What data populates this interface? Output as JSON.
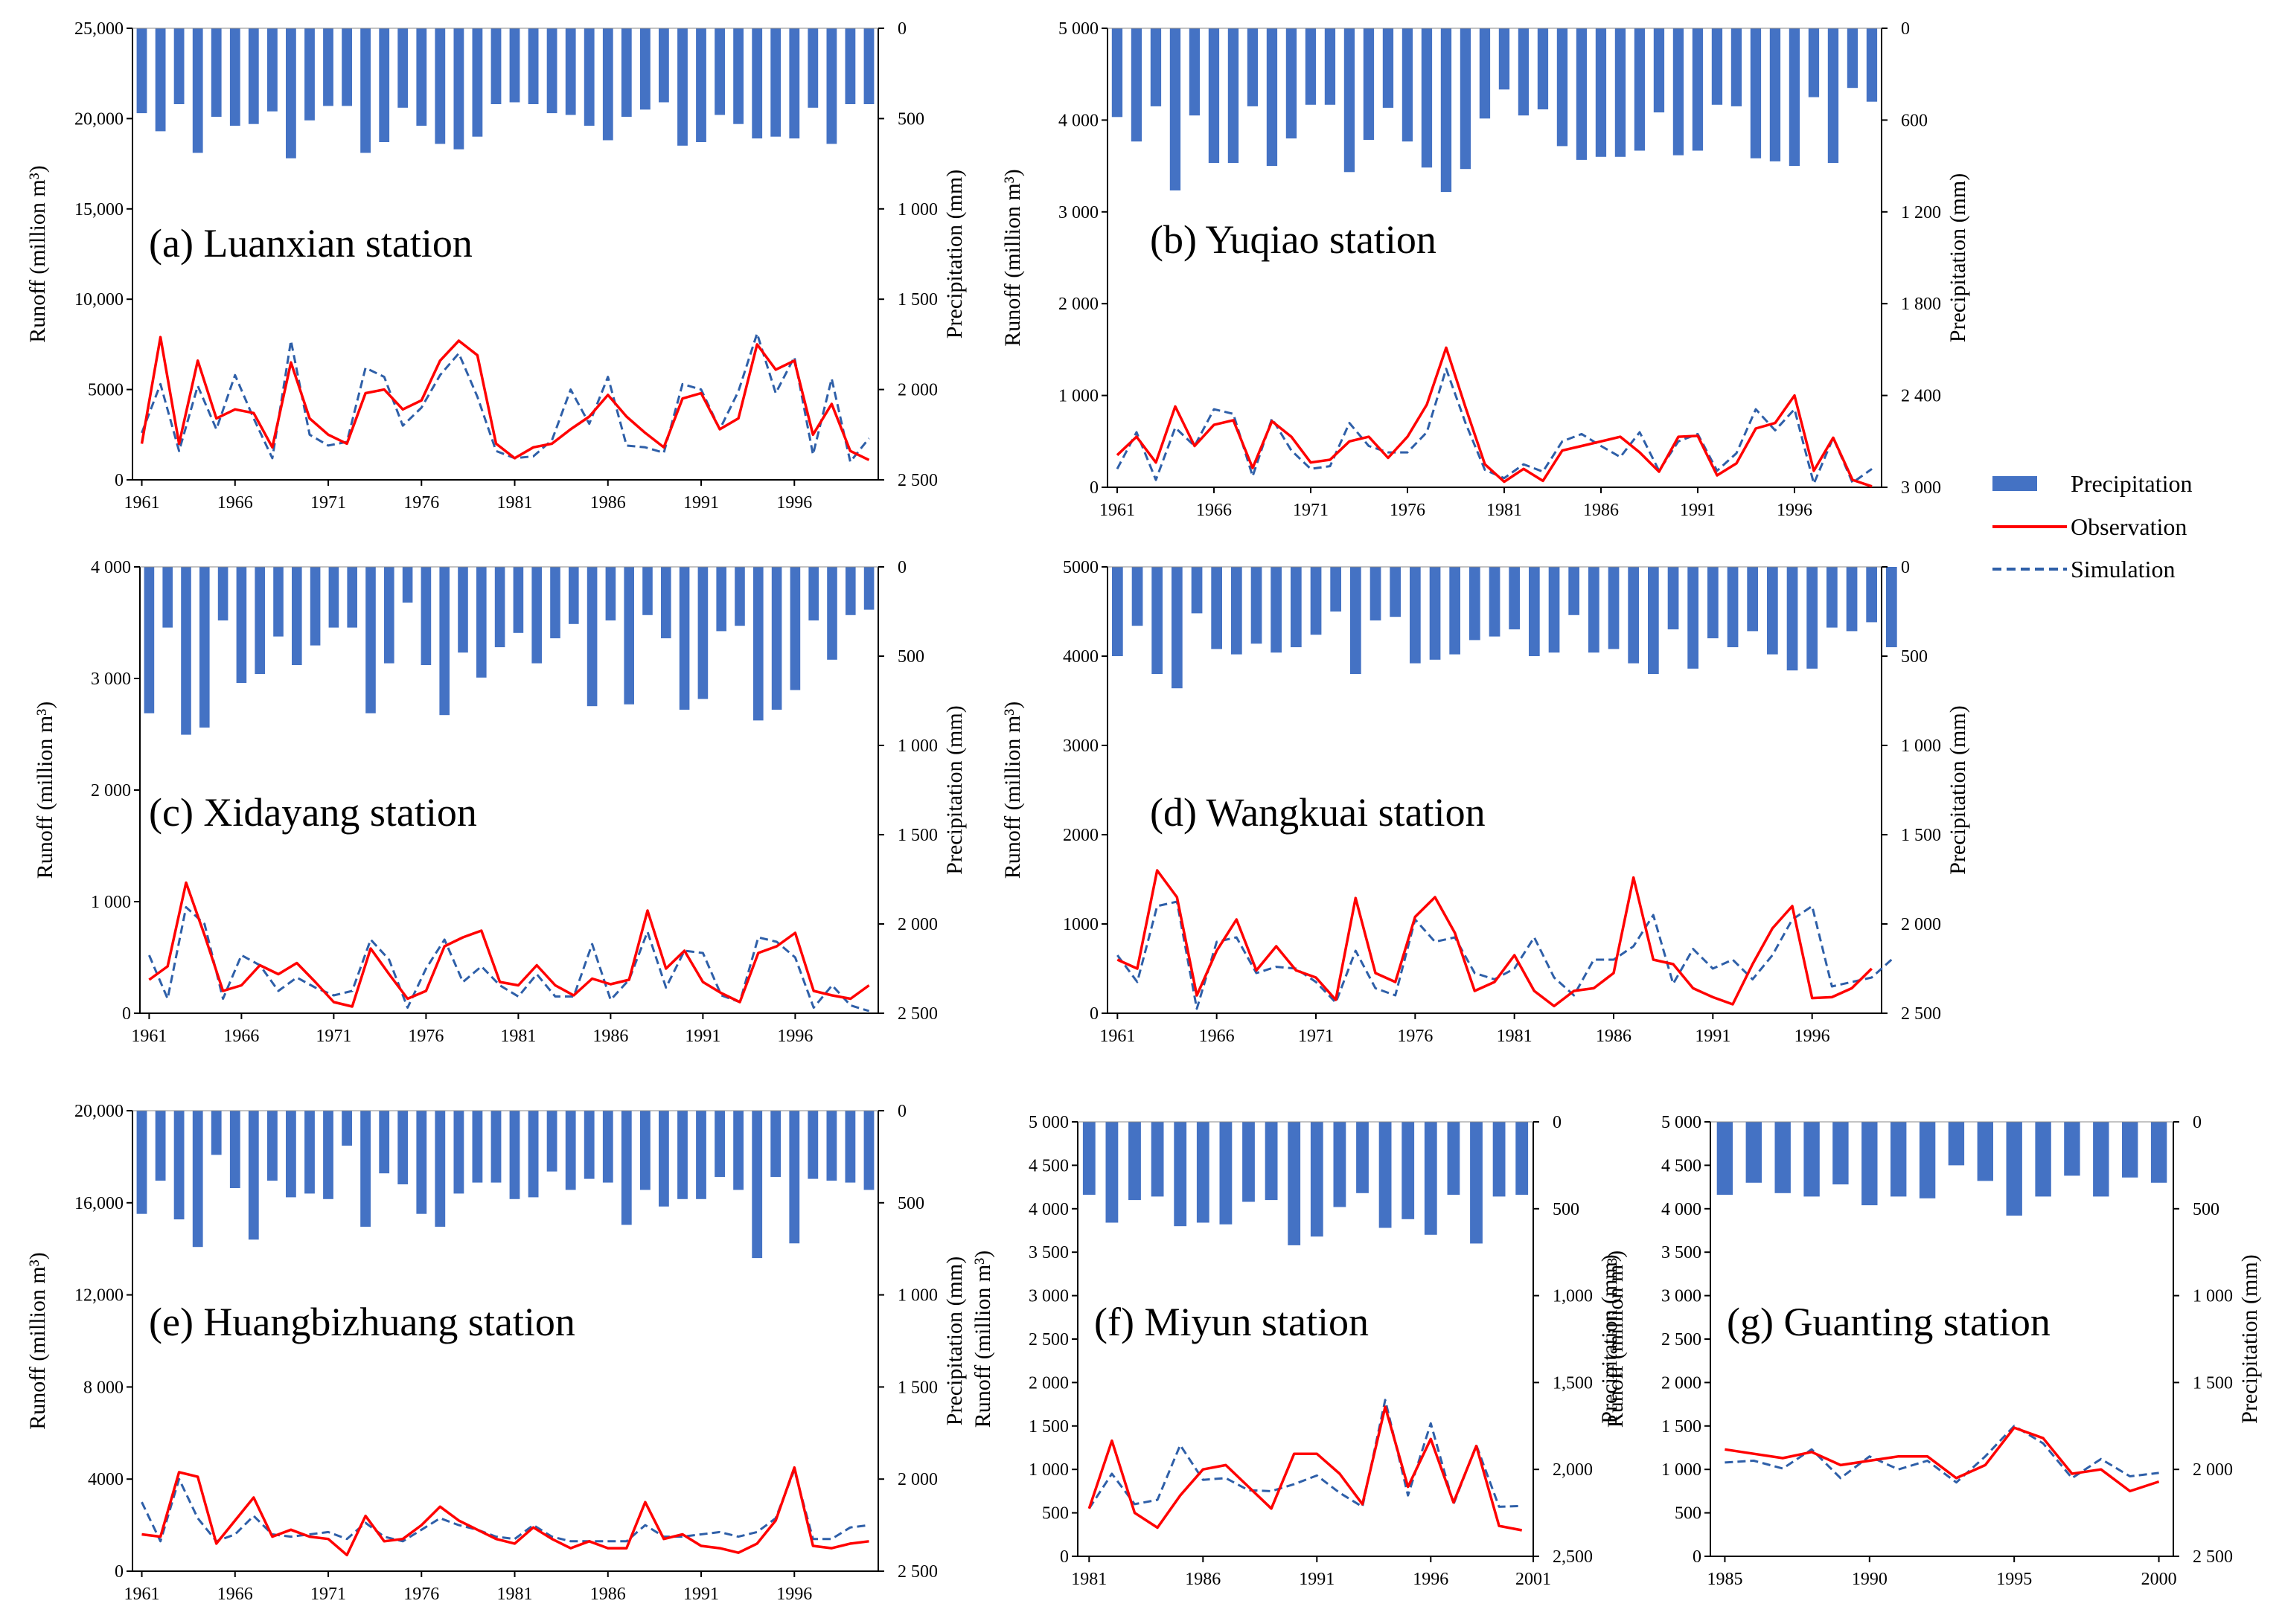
{
  "colors": {
    "precipitation": "#4472C4",
    "observation": "#FF0000",
    "simulation": "#2E5FA8"
  },
  "legend": {
    "precipitation": "Precipitation",
    "observation": "Observation",
    "simulation": "Simulation",
    "placement": "right"
  },
  "chart_data": [
    {
      "type": "bar+line",
      "id": "a",
      "title": "(a)  Luanxian station",
      "ylabel": "Runoff (million m³)",
      "y2label": "Precipitation (mm)",
      "ylim": [
        0,
        25000
      ],
      "yticks": [
        "0",
        "5000",
        "10,000",
        "15,000",
        "20,000",
        "25,000"
      ],
      "y2lim": [
        0,
        2500
      ],
      "y2reversed": true,
      "y2ticks": [
        "0",
        "500",
        "1 000",
        "1 500",
        "2 000",
        "2 500"
      ],
      "xstart": 1961,
      "xticks": [
        "1961",
        "1966",
        "1971",
        "1976",
        "1981",
        "1986",
        "1991",
        "1996"
      ],
      "grid": false,
      "precipitation": [
        470,
        570,
        420,
        690,
        490,
        540,
        530,
        460,
        720,
        510,
        430,
        430,
        690,
        630,
        440,
        540,
        640,
        670,
        600,
        420,
        410,
        420,
        470,
        480,
        540,
        620,
        490,
        450,
        410,
        650,
        630,
        480,
        530,
        610,
        600,
        610,
        440,
        640,
        420,
        420
      ],
      "observation": [
        2000,
        7900,
        2000,
        6600,
        3400,
        3900,
        3700,
        1800,
        6500,
        3400,
        2500,
        2000,
        4800,
        5000,
        3900,
        4400,
        6600,
        7700,
        6900,
        2000,
        1200,
        1800,
        2000,
        2800,
        3500,
        4700,
        3500,
        2600,
        1800,
        4500,
        4800,
        2800,
        3400,
        7500,
        6100,
        6600,
        2500,
        4200,
        1600,
        1100
      ],
      "simulation": [
        2600,
        5300,
        1600,
        5200,
        2800,
        5800,
        3400,
        1200,
        7700,
        2500,
        1900,
        2100,
        6200,
        5700,
        3000,
        4000,
        5800,
        7000,
        4600,
        1600,
        1200,
        1300,
        2200,
        5000,
        3100,
        5700,
        1900,
        1800,
        1500,
        5300,
        5000,
        2800,
        4900,
        8100,
        4800,
        6800,
        1400,
        5600,
        1000,
        2300
      ]
    },
    {
      "type": "bar+line",
      "id": "b",
      "title": "(b)  Yuqiao station",
      "ylabel": "Runoff (million m³)",
      "y2label": "Precipitation (mm)",
      "ylim": [
        0,
        5000
      ],
      "yticks": [
        "0",
        "1 000",
        "2 000",
        "3 000",
        "4 000",
        "5 000"
      ],
      "y2lim": [
        0,
        3000
      ],
      "y2reversed": true,
      "y2ticks": [
        "0",
        "600",
        "1 200",
        "1 800",
        "2 400",
        "3 000"
      ],
      "xstart": 1961,
      "xticks": [
        "1961",
        "1966",
        "1971",
        "1976",
        "1981",
        "1986",
        "1991",
        "1996"
      ],
      "grid": false,
      "precipitation": [
        580,
        740,
        510,
        1060,
        570,
        880,
        880,
        510,
        900,
        720,
        500,
        500,
        940,
        730,
        520,
        740,
        910,
        1070,
        920,
        590,
        400,
        570,
        530,
        770,
        860,
        840,
        840,
        800,
        550,
        830,
        800,
        500,
        510,
        850,
        870,
        900,
        450,
        880,
        390,
        480
      ],
      "observation": [
        350,
        550,
        270,
        880,
        450,
        680,
        730,
        210,
        720,
        550,
        270,
        300,
        500,
        550,
        320,
        550,
        900,
        1520,
        870,
        250,
        60,
        200,
        70,
        400,
        450,
        500,
        550,
        380,
        170,
        550,
        560,
        130,
        260,
        640,
        700,
        1000,
        180,
        540,
        80,
        10
      ],
      "simulation": [
        200,
        600,
        80,
        650,
        450,
        850,
        800,
        120,
        750,
        400,
        200,
        230,
        700,
        450,
        380,
        380,
        600,
        1290,
        700,
        190,
        100,
        250,
        170,
        500,
        580,
        450,
        330,
        600,
        180,
        500,
        580,
        180,
        370,
        850,
        620,
        850,
        40,
        540,
        50,
        200
      ]
    },
    {
      "type": "bar+line",
      "id": "c",
      "title": "(c)  Xidayang station",
      "ylabel": "Runoff (million m³)",
      "y2label": "Precipitation (mm)",
      "ylim": [
        0,
        4000
      ],
      "yticks": [
        "0",
        "1 000",
        "2 000",
        "3 000",
        "4 000"
      ],
      "y2lim": [
        0,
        2500
      ],
      "y2reversed": true,
      "y2ticks": [
        "0",
        "500",
        "1 000",
        "1 500",
        "2 000",
        "2 500"
      ],
      "xstart": 1961,
      "xticks": [
        "1961",
        "1966",
        "1971",
        "1976",
        "1981",
        "1986",
        "1991",
        "1996"
      ],
      "grid": false,
      "precipitation": [
        820,
        340,
        940,
        900,
        300,
        650,
        600,
        390,
        550,
        440,
        340,
        340,
        820,
        540,
        200,
        550,
        830,
        480,
        620,
        450,
        370,
        540,
        400,
        320,
        780,
        300,
        770,
        270,
        400,
        800,
        740,
        360,
        330,
        860,
        800,
        690,
        300,
        520,
        270,
        240
      ],
      "observation": [
        300,
        420,
        1170,
        700,
        200,
        250,
        430,
        350,
        450,
        280,
        100,
        60,
        580,
        350,
        130,
        200,
        600,
        680,
        740,
        280,
        250,
        430,
        250,
        160,
        310,
        260,
        300,
        920,
        400,
        560,
        280,
        180,
        100,
        540,
        600,
        720,
        200,
        160,
        130,
        250
      ],
      "simulation": [
        520,
        130,
        950,
        800,
        130,
        520,
        430,
        200,
        320,
        230,
        160,
        200,
        660,
        480,
        50,
        400,
        660,
        280,
        420,
        250,
        150,
        350,
        150,
        150,
        620,
        120,
        300,
        730,
        230,
        560,
        540,
        160,
        100,
        680,
        640,
        500,
        50,
        250,
        70,
        20
      ]
    },
    {
      "type": "bar+line",
      "id": "d",
      "title": "(d)  Wangkuai station",
      "ylabel": "Runoff (million m³)",
      "y2label": "Precipitation (mm)",
      "ylim": [
        0,
        5000
      ],
      "yticks": [
        "0",
        "1000",
        "2000",
        "3000",
        "4000",
        "5000"
      ],
      "y2lim": [
        0,
        2500
      ],
      "y2reversed": true,
      "y2ticks": [
        "0",
        "500",
        "1 000",
        "1 500",
        "2 000",
        "2 500"
      ],
      "xstart": 1961,
      "xticks": [
        "1961",
        "1966",
        "1971",
        "1976",
        "1981",
        "1986",
        "1991",
        "1996"
      ],
      "grid": false,
      "precipitation": [
        500,
        330,
        600,
        680,
        260,
        460,
        490,
        430,
        480,
        450,
        380,
        250,
        600,
        300,
        280,
        540,
        520,
        490,
        410,
        390,
        350,
        500,
        480,
        270,
        480,
        460,
        540,
        600,
        350,
        570,
        400,
        450,
        360,
        490,
        580,
        570,
        340,
        360,
        310,
        450
      ],
      "observation": [
        600,
        500,
        1600,
        1300,
        200,
        700,
        1050,
        480,
        750,
        480,
        400,
        150,
        1290,
        450,
        350,
        1080,
        1300,
        900,
        250,
        350,
        650,
        250,
        80,
        250,
        280,
        450,
        1520,
        600,
        550,
        280,
        180,
        100,
        550,
        950,
        1200,
        170,
        180,
        280,
        500
      ],
      "simulation": [
        650,
        350,
        1200,
        1250,
        50,
        800,
        850,
        450,
        520,
        500,
        350,
        120,
        700,
        280,
        200,
        1050,
        800,
        850,
        450,
        380,
        500,
        850,
        400,
        200,
        600,
        600,
        750,
        1100,
        330,
        720,
        500,
        600,
        380,
        650,
        1050,
        1200,
        300,
        350,
        400,
        600
      ]
    },
    {
      "type": "bar+line",
      "id": "e",
      "title": "(e)  Huangbizhuang station",
      "ylabel": "Runoff (million m³)",
      "y2label": "Precipitation (mm)",
      "ylim": [
        0,
        20000
      ],
      "yticks": [
        "0",
        "4000",
        "8 000",
        "12,000",
        "16,000",
        "20,000"
      ],
      "y2lim": [
        0,
        2500
      ],
      "y2reversed": true,
      "y2ticks": [
        "0",
        "500",
        "1 000",
        "1 500",
        "2 000",
        "2 500"
      ],
      "xstart": 1961,
      "xticks": [
        "1961",
        "1966",
        "1971",
        "1976",
        "1981",
        "1986",
        "1991",
        "1996"
      ],
      "grid": false,
      "precipitation": [
        560,
        380,
        590,
        740,
        240,
        420,
        700,
        380,
        470,
        450,
        480,
        190,
        630,
        340,
        400,
        560,
        630,
        450,
        390,
        390,
        480,
        470,
        330,
        430,
        370,
        390,
        620,
        430,
        520,
        480,
        480,
        360,
        430,
        800,
        360,
        720,
        370,
        380,
        390,
        430
      ],
      "observation": [
        1600,
        1500,
        4300,
        4100,
        1200,
        2200,
        3200,
        1500,
        1800,
        1500,
        1400,
        700,
        2400,
        1300,
        1400,
        2000,
        2800,
        2200,
        1800,
        1400,
        1200,
        1900,
        1400,
        1000,
        1300,
        1000,
        1000,
        3000,
        1400,
        1600,
        1100,
        1000,
        800,
        1200,
        2200,
        4500,
        1100,
        1000,
        1200,
        1300
      ],
      "simulation": [
        3000,
        1300,
        4000,
        2300,
        1300,
        1600,
        2400,
        1600,
        1500,
        1600,
        1700,
        1400,
        2100,
        1500,
        1300,
        1800,
        2300,
        2000,
        1800,
        1500,
        1400,
        2000,
        1500,
        1300,
        1300,
        1300,
        1300,
        2000,
        1500,
        1500,
        1600,
        1700,
        1500,
        1700,
        2300,
        4400,
        1400,
        1400,
        1900,
        2000
      ]
    },
    {
      "type": "bar+line",
      "id": "f",
      "title": "(f)  Miyun station",
      "ylabel": "Runoff (million m³)",
      "y2label": "Precipitation (mm)",
      "ylim": [
        0,
        5000
      ],
      "yticks": [
        "0",
        "500",
        "1 000",
        "1 500",
        "2 000",
        "2 500",
        "3 000",
        "3 500",
        "4 000",
        "4 500",
        "5 000"
      ],
      "y2lim": [
        0,
        2500
      ],
      "y2reversed": true,
      "y2ticks": [
        "0",
        "500",
        "1,000",
        "1,500",
        "2,000",
        "2,500"
      ],
      "xstart": 1981,
      "xticks": [
        "1981",
        "1986",
        "1991",
        "1996",
        "2001"
      ],
      "grid": false,
      "precipitation": [
        420,
        580,
        450,
        430,
        600,
        580,
        590,
        460,
        450,
        710,
        660,
        490,
        410,
        610,
        560,
        650,
        420,
        700,
        430,
        420
      ],
      "observation": [
        550,
        1330,
        500,
        330,
        700,
        1000,
        1050,
        800,
        550,
        1180,
        1180,
        950,
        600,
        1720,
        800,
        1350,
        620,
        1270,
        350,
        300
      ],
      "simulation": [
        550,
        950,
        600,
        650,
        1280,
        880,
        900,
        760,
        750,
        830,
        930,
        730,
        570,
        1800,
        700,
        1530,
        600,
        1280,
        570,
        580
      ]
    },
    {
      "type": "bar+line",
      "id": "g",
      "title": "(g)  Guanting station",
      "ylabel": "Runoff (million m³)",
      "y2label": "Precipitation (mm)",
      "ylim": [
        0,
        5000
      ],
      "yticks": [
        "0",
        "500",
        "1 000",
        "1 500",
        "2 000",
        "2 500",
        "3 000",
        "3 500",
        "4 000",
        "4 500",
        "5 000"
      ],
      "y2lim": [
        0,
        2500
      ],
      "y2reversed": true,
      "y2ticks": [
        "0",
        "500",
        "1 000",
        "1 500",
        "2 000",
        "2 500"
      ],
      "xstart": 1985,
      "xticks": [
        "1985",
        "1990",
        "1995",
        "2000"
      ],
      "grid": false,
      "precipitation": [
        420,
        350,
        410,
        430,
        360,
        480,
        430,
        440,
        250,
        340,
        540,
        430,
        310,
        430,
        320,
        350
      ],
      "observation": [
        1230,
        1180,
        1130,
        1200,
        1050,
        1100,
        1150,
        1150,
        900,
        1050,
        1480,
        1360,
        950,
        1000,
        750,
        860
      ],
      "simulation": [
        1080,
        1100,
        1010,
        1230,
        900,
        1150,
        1000,
        1100,
        850,
        1150,
        1500,
        1300,
        900,
        1120,
        920,
        960
      ]
    }
  ]
}
